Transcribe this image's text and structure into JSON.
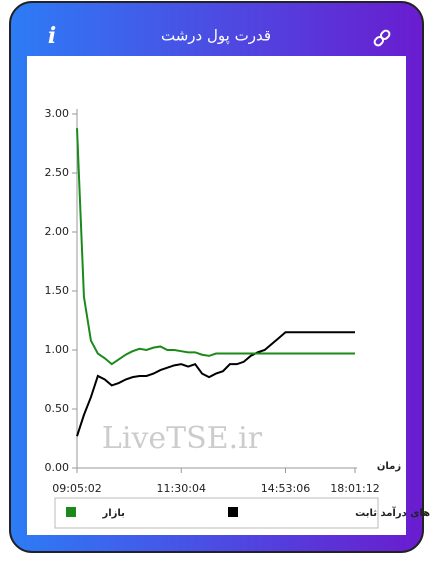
{
  "header": {
    "icon": "i",
    "title": "قدرت پول درشت"
  },
  "chart_data": {
    "type": "line",
    "watermark": "LiveTSE.ir",
    "x_label": "زمان",
    "categories": [
      "09:05:02",
      null,
      null,
      null,
      null,
      null,
      null,
      null,
      null,
      null,
      null,
      null,
      null,
      null,
      null,
      "11:30:04",
      null,
      null,
      null,
      null,
      null,
      null,
      null,
      null,
      null,
      null,
      null,
      null,
      null,
      null,
      "14:53:06",
      null,
      null,
      null,
      null,
      null,
      null,
      null,
      null,
      null,
      "18:01:12"
    ],
    "ylim": [
      0,
      3
    ],
    "yticks": [
      {
        "value": 0,
        "label": "0.00"
      },
      {
        "value": 0.5,
        "label": "0.50"
      },
      {
        "value": 1,
        "label": "1.00"
      },
      {
        "value": 1.5,
        "label": "1.50"
      },
      {
        "value": 2,
        "label": "2.00"
      },
      {
        "value": 2.5,
        "label": "2.50"
      },
      {
        "value": 3,
        "label": "3.00"
      }
    ],
    "grid": false,
    "series": [
      {
        "name": "صندوق های درآمد ثابت",
        "color": "#000000",
        "values": [
          0.27,
          0.45,
          0.6,
          0.78,
          0.75,
          0.7,
          0.72,
          0.75,
          0.77,
          0.78,
          0.78,
          0.8,
          0.83,
          0.85,
          0.87,
          0.88,
          0.86,
          0.88,
          0.8,
          0.77,
          0.8,
          0.82,
          0.88,
          0.88,
          0.9,
          0.95,
          0.98,
          1.0,
          1.05,
          1.1,
          1.15,
          1.15,
          1.15,
          1.15,
          1.15,
          1.15,
          1.15,
          1.15,
          1.15,
          1.15,
          1.15
        ]
      },
      {
        "name": "بازار",
        "color": "#1a8a1a",
        "values": [
          2.88,
          1.45,
          1.08,
          0.97,
          0.93,
          0.88,
          0.92,
          0.96,
          0.99,
          1.01,
          1.0,
          1.02,
          1.03,
          1.0,
          1.0,
          0.99,
          0.98,
          0.98,
          0.96,
          0.95,
          0.97,
          0.97,
          0.97,
          0.97,
          0.97,
          0.97,
          0.97,
          0.97,
          0.97,
          0.97,
          0.97,
          0.97,
          0.97,
          0.97,
          0.97,
          0.97,
          0.97,
          0.97,
          0.97,
          0.97,
          0.97
        ]
      }
    ]
  }
}
